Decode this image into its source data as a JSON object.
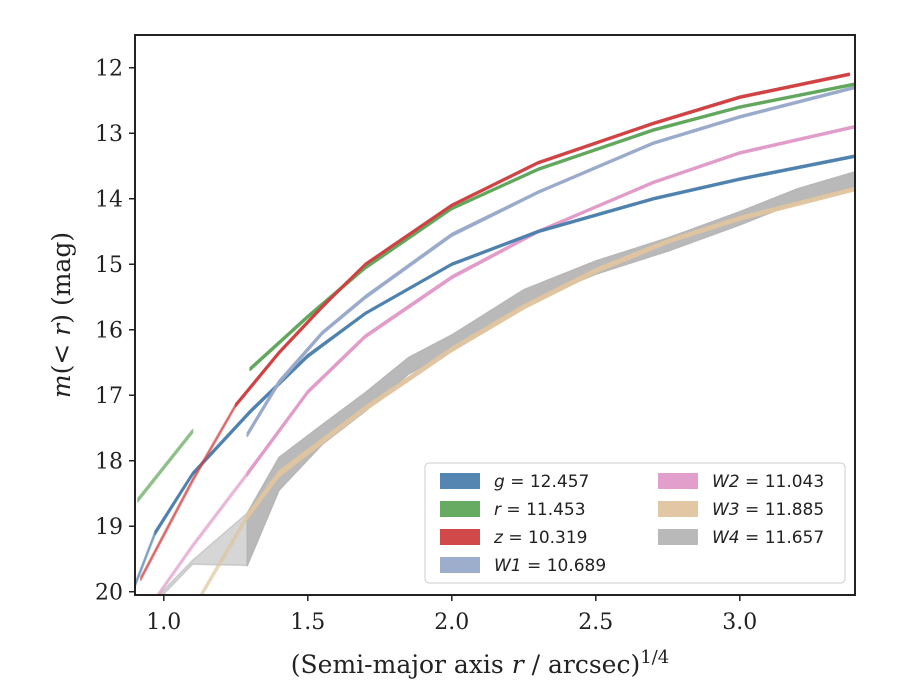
{
  "chart_data": {
    "type": "line",
    "xlabel": "(Semi-major axis r / arcsec)^1/4",
    "ylabel": "m(< r) (mag)",
    "xlim": [
      0.9,
      3.4
    ],
    "ylim": [
      20.05,
      11.5
    ],
    "x_inverted": false,
    "y_inverted": true,
    "grid": false,
    "legend_position": "lower-right",
    "x_ticks": [
      {
        "value": 1.0,
        "label": "1.0"
      },
      {
        "value": 1.5,
        "label": "1.5"
      },
      {
        "value": 2.0,
        "label": "2.0"
      },
      {
        "value": 2.5,
        "label": "2.5"
      },
      {
        "value": 3.0,
        "label": "3.0"
      }
    ],
    "y_ticks": [
      {
        "value": 12,
        "label": "12"
      },
      {
        "value": 13,
        "label": "13"
      },
      {
        "value": 14,
        "label": "14"
      },
      {
        "value": 15,
        "label": "15"
      },
      {
        "value": 16,
        "label": "16"
      },
      {
        "value": 17,
        "label": "17"
      },
      {
        "value": 18,
        "label": "18"
      },
      {
        "value": 19,
        "label": "19"
      },
      {
        "value": 20,
        "label": "20"
      }
    ],
    "series": [
      {
        "name": "g = 12.457",
        "band": "g",
        "value": "12.457",
        "color": "#4c7fad",
        "x": [
          0.9,
          0.97,
          1.1,
          1.3,
          1.5,
          1.7,
          2.0,
          2.3,
          2.7,
          3.0,
          3.4
        ],
        "y": [
          19.9,
          19.1,
          18.2,
          17.25,
          16.4,
          15.75,
          15.0,
          14.5,
          14.0,
          13.7,
          13.35
        ],
        "width": [
          0.05,
          0.05,
          0.04,
          0.04,
          0.04,
          0.03,
          0.03,
          0.03,
          0.03,
          0.03,
          0.03
        ],
        "fade_below": 0.97
      },
      {
        "name": "r = 11.453",
        "band": "r",
        "value": "11.453",
        "color": "#5fa55a",
        "x": [
          0.91,
          1.1,
          1.3,
          1.5,
          1.7,
          2.0,
          2.3,
          2.7,
          3.0,
          3.4
        ],
        "y": [
          18.6,
          17.55,
          16.6,
          15.8,
          15.05,
          14.15,
          13.55,
          12.95,
          12.6,
          12.25
        ],
        "width": [
          0.05,
          0.05,
          0.04,
          0.04,
          0.04,
          0.03,
          0.03,
          0.03,
          0.03,
          0.03
        ],
        "fade_below": 1.25
      },
      {
        "name": "z = 10.319",
        "band": "z",
        "value": "10.319",
        "color": "#d03f40",
        "x": [
          0.92,
          1.1,
          1.25,
          1.4,
          1.55,
          1.7,
          2.0,
          2.3,
          2.7,
          3.0,
          3.38
        ],
        "y": [
          19.8,
          18.3,
          17.15,
          16.35,
          15.65,
          15.0,
          14.1,
          13.45,
          12.85,
          12.45,
          12.1
        ],
        "width": [
          0.05,
          0.05,
          0.04,
          0.04,
          0.04,
          0.03,
          0.03,
          0.03,
          0.03,
          0.03,
          0.03
        ],
        "fade_below": 1.25
      },
      {
        "name": "W1 = 10.689",
        "band": "W1",
        "value": "10.689",
        "color": "#98a9c9",
        "x": [
          1.29,
          1.4,
          1.55,
          1.7,
          2.0,
          2.3,
          2.7,
          3.0,
          3.4
        ],
        "y": [
          17.6,
          16.8,
          16.05,
          15.5,
          14.55,
          13.9,
          13.15,
          12.75,
          12.3
        ],
        "width": [
          0.05,
          0.05,
          0.04,
          0.04,
          0.04,
          0.03,
          0.03,
          0.03,
          0.03
        ],
        "fade_below": 1.29
      },
      {
        "name": "W2 = 11.043",
        "band": "W2",
        "value": "11.043",
        "color": "#e09ac8",
        "x": [
          0.98,
          1.1,
          1.29,
          1.5,
          1.7,
          2.0,
          2.3,
          2.7,
          3.0,
          3.4
        ],
        "y": [
          20.05,
          19.3,
          18.2,
          16.95,
          16.1,
          15.2,
          14.5,
          13.75,
          13.3,
          12.9
        ],
        "width": [
          0.05,
          0.05,
          0.05,
          0.04,
          0.04,
          0.04,
          0.03,
          0.03,
          0.03,
          0.03
        ],
        "fade_below": 1.29
      },
      {
        "name": "W3 = 11.885",
        "band": "W3",
        "value": "11.885",
        "color": "#dfc49f",
        "x": [
          1.13,
          1.29,
          1.4,
          1.55,
          1.7,
          2.0,
          2.25,
          2.5,
          2.75,
          3.0,
          3.4
        ],
        "y": [
          20.05,
          18.85,
          18.2,
          17.7,
          17.2,
          16.3,
          15.65,
          15.1,
          14.65,
          14.3,
          13.85
        ],
        "width": [
          0.06,
          0.08,
          0.08,
          0.07,
          0.06,
          0.06,
          0.06,
          0.06,
          0.05,
          0.05,
          0.05
        ],
        "fade_below": 1.29
      },
      {
        "name": "W4 = 11.657",
        "band": "W4",
        "value": "11.657",
        "color": "#b5b5b5",
        "x": [
          0.99,
          1.1,
          1.29,
          1.4,
          1.55,
          1.7,
          1.85,
          2.0,
          2.25,
          2.5,
          2.75,
          3.0,
          3.2,
          3.4
        ],
        "y": [
          20.05,
          19.55,
          19.2,
          18.2,
          17.6,
          17.1,
          16.55,
          16.2,
          15.5,
          15.05,
          14.7,
          14.3,
          13.95,
          13.7
        ],
        "width": [
          0.06,
          0.06,
          0.8,
          0.5,
          0.3,
          0.28,
          0.25,
          0.24,
          0.22,
          0.2,
          0.2,
          0.2,
          0.2,
          0.22
        ],
        "fade_below": 1.29
      }
    ]
  }
}
